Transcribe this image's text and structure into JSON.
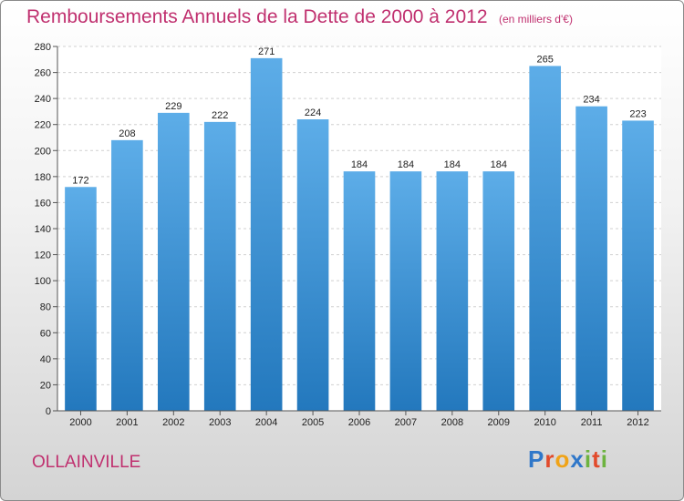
{
  "title": "Remboursements Annuels de la Dette de 2000 à 2012",
  "subtitle": "(en milliers d'€)",
  "location": "OLLAINVILLE",
  "logo_letters": [
    {
      "ch": "P",
      "color": "#2f77c9"
    },
    {
      "ch": "r",
      "color": "#e24a2b"
    },
    {
      "ch": "o",
      "color": "#f0a317"
    },
    {
      "ch": "x",
      "color": "#2f77c9"
    },
    {
      "ch": "i",
      "color": "#6db33f"
    },
    {
      "ch": "t",
      "color": "#e24a2b"
    },
    {
      "ch": "i",
      "color": "#6db33f"
    }
  ],
  "colors": {
    "bar_top": "#5dade8",
    "bar_bottom": "#2378bd",
    "title": "#c0306f"
  },
  "chart_data": {
    "type": "bar",
    "categories": [
      "2000",
      "2001",
      "2002",
      "2003",
      "2004",
      "2005",
      "2006",
      "2007",
      "2008",
      "2009",
      "2010",
      "2011",
      "2012"
    ],
    "values": [
      172,
      208,
      229,
      222,
      271,
      224,
      184,
      184,
      184,
      184,
      265,
      234,
      223
    ],
    "ylim": [
      0,
      280
    ],
    "yticks": [
      0,
      20,
      40,
      60,
      80,
      100,
      120,
      140,
      160,
      180,
      200,
      220,
      240,
      260,
      280
    ],
    "grid": true
  }
}
